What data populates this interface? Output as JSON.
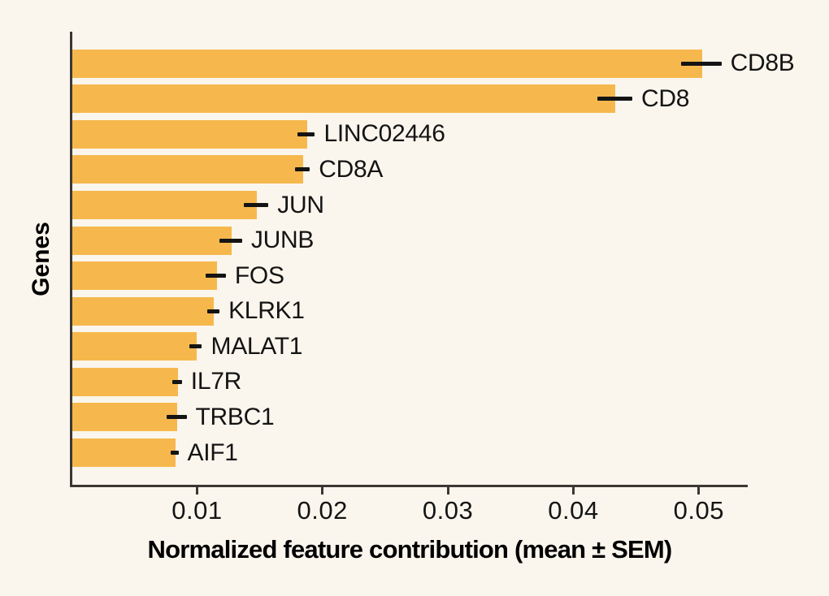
{
  "figure": {
    "background_color": "#FBF6ED",
    "bar_color": "#F6B84D",
    "spine_color": "#3B3733",
    "errorbar_color": "#141414",
    "text_color": "#141414"
  },
  "chart_data": {
    "type": "bar",
    "orientation": "horizontal",
    "title": "",
    "xlabel": "Normalized feature contribution (mean ± SEM)",
    "ylabel": "Genes",
    "categories": [
      "CD8B",
      "CD8",
      "LINC02446",
      "CD8A",
      "JUN",
      "JUNB",
      "FOS",
      "KLRK1",
      "MALAT1",
      "IL7R",
      "TRBC1",
      "AIF1"
    ],
    "values": [
      0.0502,
      0.0433,
      0.0187,
      0.0184,
      0.0147,
      0.0127,
      0.0115,
      0.0113,
      0.0099,
      0.0084,
      0.00837,
      0.00822
    ],
    "sem": [
      0.0016,
      0.0014,
      0.0007,
      0.0006,
      0.001,
      0.0009,
      0.0008,
      0.0005,
      0.0005,
      0.0004,
      0.0008,
      0.0003
    ],
    "xlim": [
      0,
      0.0539
    ],
    "xticks": [
      0.01,
      0.02,
      0.03,
      0.04,
      0.05
    ],
    "xtick_labels": [
      "0.01",
      "0.02",
      "0.03",
      "0.04",
      "0.05"
    ],
    "grid": false,
    "legend": null,
    "error_bar_style": "horizontal mean ± SEM, no caps"
  }
}
